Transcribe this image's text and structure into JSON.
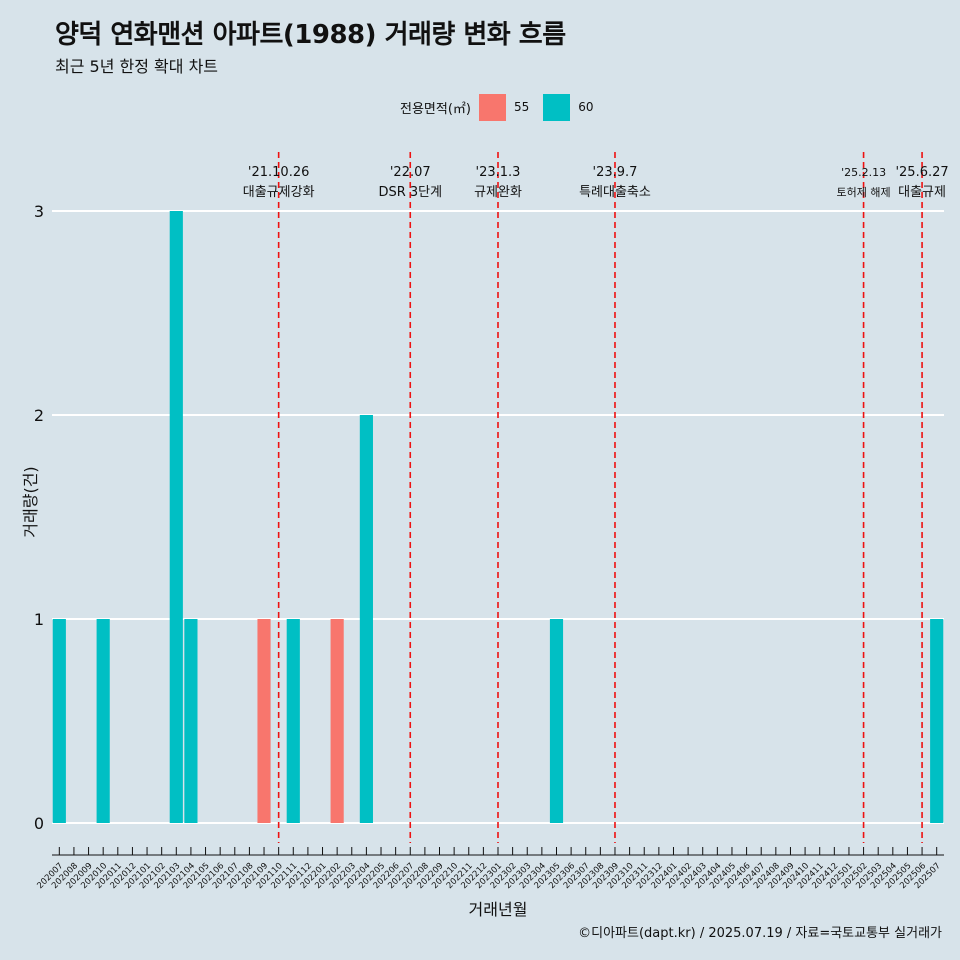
{
  "chart_data": {
    "type": "bar",
    "title": "양덕 연화맨션 아파트(1988) 거래량 변화 흐름",
    "subtitle": "최근 5년 한정 확대 차트",
    "xlabel": "거래년월",
    "ylabel": "거래량(건)",
    "caption": "©디아파트(dapt.kr) / 2025.07.19 / 자료=국토교통부 실거래가",
    "legend": {
      "title": "전용면적(㎡)",
      "position": "top"
    },
    "ylim": [
      0,
      3
    ],
    "yticks": [
      "0",
      "1",
      "2",
      "3"
    ],
    "categories": [
      "202007",
      "202008",
      "202009",
      "202010",
      "202011",
      "202012",
      "202101",
      "202102",
      "202103",
      "202104",
      "202105",
      "202106",
      "202107",
      "202108",
      "202109",
      "202110",
      "202111",
      "202112",
      "202201",
      "202202",
      "202203",
      "202204",
      "202205",
      "202206",
      "202207",
      "202208",
      "202209",
      "202210",
      "202211",
      "202212",
      "202301",
      "202302",
      "202303",
      "202304",
      "202305",
      "202306",
      "202307",
      "202308",
      "202309",
      "202310",
      "202311",
      "202312",
      "202401",
      "202402",
      "202403",
      "202404",
      "202405",
      "202406",
      "202407",
      "202408",
      "202409",
      "202410",
      "202411",
      "202412",
      "202501",
      "202502",
      "202503",
      "202504",
      "202505",
      "202506",
      "202507"
    ],
    "series": [
      {
        "name": "55",
        "color": "#f8766d",
        "values": [
          0,
          0,
          0,
          0,
          0,
          0,
          0,
          0,
          0,
          0,
          0,
          0,
          0,
          0,
          1,
          0,
          0,
          0,
          0,
          1,
          0,
          0,
          0,
          0,
          0,
          0,
          0,
          0,
          0,
          0,
          0,
          0,
          0,
          0,
          0,
          0,
          0,
          0,
          0,
          0,
          0,
          0,
          0,
          0,
          0,
          0,
          0,
          0,
          0,
          0,
          0,
          0,
          0,
          0,
          0,
          0,
          0,
          0,
          0,
          0,
          0
        ]
      },
      {
        "name": "60",
        "color": "#00bfc4",
        "values": [
          1,
          0,
          0,
          1,
          0,
          0,
          0,
          0,
          3,
          1,
          0,
          0,
          0,
          0,
          0,
          0,
          1,
          0,
          0,
          0,
          0,
          2,
          0,
          0,
          0,
          0,
          0,
          0,
          0,
          0,
          0,
          0,
          0,
          0,
          1,
          0,
          0,
          0,
          0,
          0,
          0,
          0,
          0,
          0,
          0,
          0,
          0,
          0,
          0,
          0,
          0,
          0,
          0,
          0,
          0,
          0,
          0,
          0,
          0,
          0,
          1
        ]
      }
    ],
    "annotations": [
      {
        "at": "202110",
        "date": "'21.10.26",
        "text": "대출규제강화"
      },
      {
        "at": "202207",
        "date": "'22.07",
        "text": "DSR 3단계"
      },
      {
        "at": "202301",
        "date": "'23.1.3",
        "text": "규제완화"
      },
      {
        "at": "202309",
        "date": "'23.9.7",
        "text": "특례대출축소"
      },
      {
        "at": "202502",
        "date": "'25.2.13",
        "text": "토허제 해제"
      },
      {
        "at": "202506",
        "date": "'25.6.27",
        "text": "대출규제"
      }
    ],
    "grid": true
  }
}
